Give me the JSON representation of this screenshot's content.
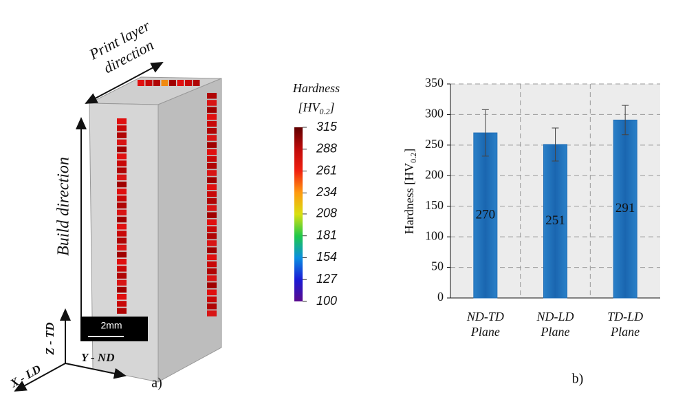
{
  "panel_a": {
    "label": "a)",
    "print_layer": [
      "Print layer",
      "direction"
    ],
    "build_direction": "Build direction",
    "scale_bar": "2mm",
    "axes": {
      "z": "Z - TD",
      "y": "Y - ND",
      "x": "X - LD"
    },
    "colorbar": {
      "title": "Hardness",
      "unit": "[HV",
      "unit_sub": "0.2",
      "unit_end": "]",
      "ticks": [
        100,
        127,
        154,
        181,
        208,
        234,
        261,
        288,
        315
      ],
      "colors": [
        "#5a0a8c",
        "#1a1ad6",
        "#0a8ee0",
        "#1ec84a",
        "#d8e010",
        "#ff9a10",
        "#f02010",
        "#c00a0a",
        "#600000"
      ]
    }
  },
  "chart_data": {
    "type": "bar",
    "panel_label": "b)",
    "categories": [
      "ND-TD Plane",
      "ND-LD Plane",
      "TD-LD Plane"
    ],
    "values": [
      270,
      251,
      291
    ],
    "errors": [
      38,
      27,
      24
    ],
    "color": "#1f6db6",
    "y_label": "Hardness [HV",
    "y_label_sub": "0.2",
    "y_label_end": "]",
    "ylim": [
      0,
      350
    ],
    "yticks": [
      0,
      50,
      100,
      150,
      200,
      250,
      300,
      350
    ],
    "grid": true
  }
}
